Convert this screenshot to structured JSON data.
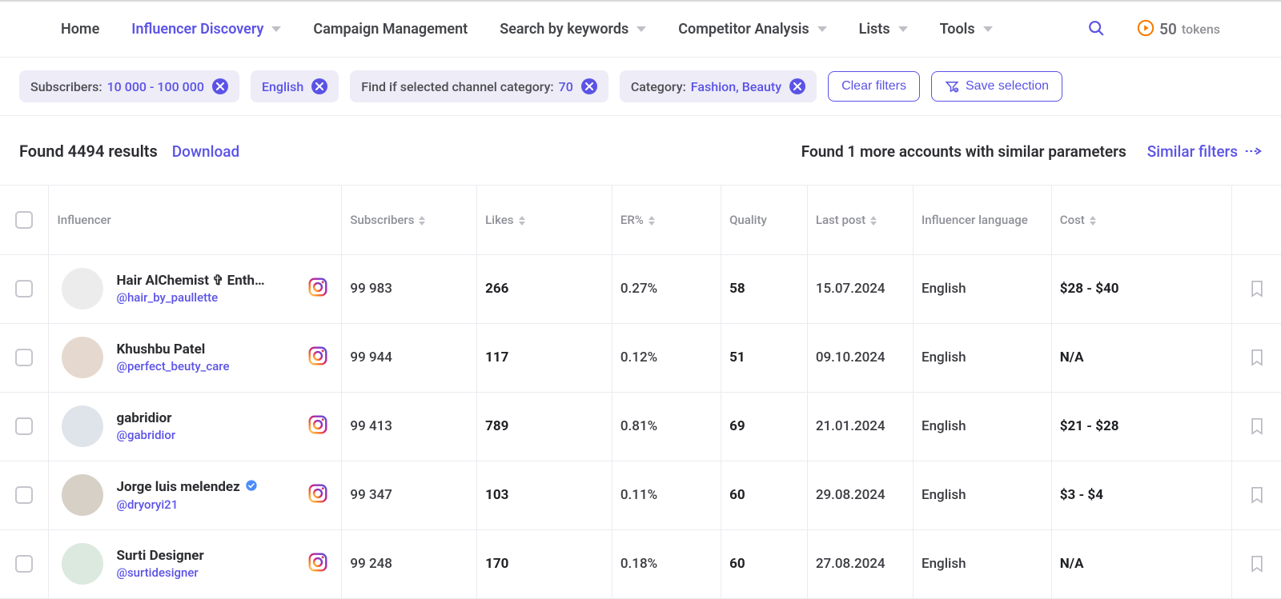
{
  "nav": {
    "items": [
      {
        "label": "Home",
        "dropdown": false,
        "active": false
      },
      {
        "label": "Influencer Discovery",
        "dropdown": true,
        "active": true
      },
      {
        "label": "Campaign Management",
        "dropdown": false,
        "active": false
      },
      {
        "label": "Search by keywords",
        "dropdown": true,
        "active": false
      },
      {
        "label": "Competitor Analysis",
        "dropdown": true,
        "active": false
      },
      {
        "label": "Lists",
        "dropdown": true,
        "active": false
      },
      {
        "label": "Tools",
        "dropdown": true,
        "active": false
      }
    ],
    "tokens_count": "50",
    "tokens_label": "tokens"
  },
  "filters": {
    "chips": [
      {
        "label": "Subscribers:",
        "value": "10 000 - 100 000"
      },
      {
        "label": "",
        "value": "English"
      },
      {
        "label": "Find if selected channel category:",
        "value": "70"
      },
      {
        "label": "Category:",
        "value": "Fashion, Beauty"
      }
    ],
    "clear_label": "Clear filters",
    "save_label": "Save selection"
  },
  "results": {
    "found_text": "Found 4494 results",
    "download_label": "Download",
    "similar_note": "Found 1 more accounts with similar parameters",
    "similar_link": "Similar filters"
  },
  "columns": {
    "influencer": "Influencer",
    "subscribers": "Subscribers",
    "likes": "Likes",
    "er": "ER%",
    "quality": "Quality",
    "last_post": "Last post",
    "language": "Influencer language",
    "cost": "Cost"
  },
  "rows": [
    {
      "name": "Hair AlChemist ✞ Enth…",
      "handle": "@hair_by_paullette",
      "verified": false,
      "subscribers": "99 983",
      "likes": "266",
      "er": "0.27%",
      "quality": "58",
      "last_post": "15.07.2024",
      "language": "English",
      "cost": "$28 - $40"
    },
    {
      "name": "Khushbu Patel",
      "handle": "@perfect_beuty_care",
      "verified": false,
      "subscribers": "99 944",
      "likes": "117",
      "er": "0.12%",
      "quality": "51",
      "last_post": "09.10.2024",
      "language": "English",
      "cost": "N/A"
    },
    {
      "name": "gabridior",
      "handle": "@gabridior",
      "verified": false,
      "subscribers": "99 413",
      "likes": "789",
      "er": "0.81%",
      "quality": "69",
      "last_post": "21.01.2024",
      "language": "English",
      "cost": "$21 - $28"
    },
    {
      "name": "Jorge luis melendez",
      "handle": "@dryoryi21",
      "verified": true,
      "subscribers": "99 347",
      "likes": "103",
      "er": "0.11%",
      "quality": "60",
      "last_post": "29.08.2024",
      "language": "English",
      "cost": "$3 - $4"
    },
    {
      "name": "Surti Designer",
      "handle": "@surtidesigner",
      "verified": false,
      "subscribers": "99 248",
      "likes": "170",
      "er": "0.18%",
      "quality": "60",
      "last_post": "27.08.2024",
      "language": "English",
      "cost": "N/A"
    }
  ],
  "colors": {
    "accent": "#5b53e6",
    "chip_bg": "#edecf7",
    "border": "#eceaf0",
    "muted": "#8e8f97",
    "token_orange": "#f57c00"
  }
}
